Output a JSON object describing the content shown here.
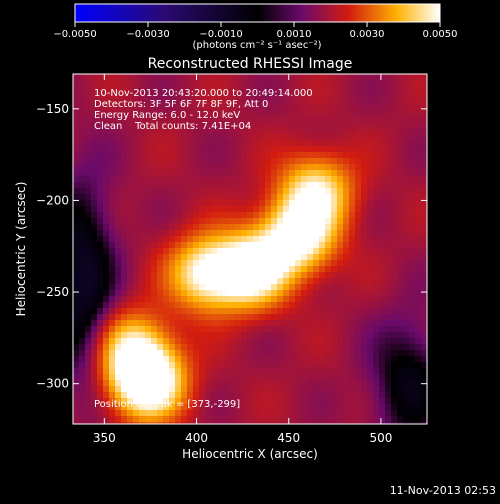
{
  "chart_data": {
    "type": "heatmap",
    "title": "Reconstructed RHESSI Image",
    "xlabel": "Heliocentric X (arcsec)",
    "ylabel": "Heliocentric Y (arcsec)",
    "xlim": [
      333,
      525
    ],
    "ylim": [
      -322,
      -131
    ],
    "x_ticks": [
      350,
      400,
      450,
      500
    ],
    "x_tick_labels": [
      "350",
      "400",
      "450",
      "500"
    ],
    "y_ticks": [
      -150,
      -200,
      -250,
      -300
    ],
    "y_tick_labels": [
      "−150",
      "−200",
      "−250",
      "−300"
    ],
    "colorbar": {
      "range": [
        -0.005,
        0.005
      ],
      "ticks": [
        -0.005,
        -0.003,
        -0.001,
        0.001,
        0.003,
        0.005
      ],
      "tick_labels": [
        "−0.0050",
        "−0.0030",
        "−0.0010",
        "0.0010",
        "0.0030",
        "0.0050"
      ],
      "units_label": "(photons cm⁻² s⁻¹ asec⁻²)"
    },
    "annotations": [
      "10-Nov-2013 20:43:20.000 to 20:49:14.000",
      "Detectors: 3F 5F 6F 7F 8F 9F, Att 0",
      "Energy Range: 6.0 - 12.0 keV",
      "Clean    Total counts: 7.41E+04"
    ],
    "peak_label": "Position of Peak = [373,-299]",
    "peak_position": [
      373,
      -299
    ],
    "sources": [
      {
        "x": 373,
        "y": -299,
        "amplitude": 1.0
      },
      {
        "x": 365,
        "y": -280,
        "amplitude": 0.55
      },
      {
        "x": 405,
        "y": -240,
        "amplitude": 0.72
      },
      {
        "x": 430,
        "y": -238,
        "amplitude": 0.85
      },
      {
        "x": 455,
        "y": -220,
        "amplitude": 0.8
      },
      {
        "x": 465,
        "y": -195,
        "amplitude": 0.65
      }
    ]
  },
  "footer_timestamp": "11-Nov-2013 02:53"
}
